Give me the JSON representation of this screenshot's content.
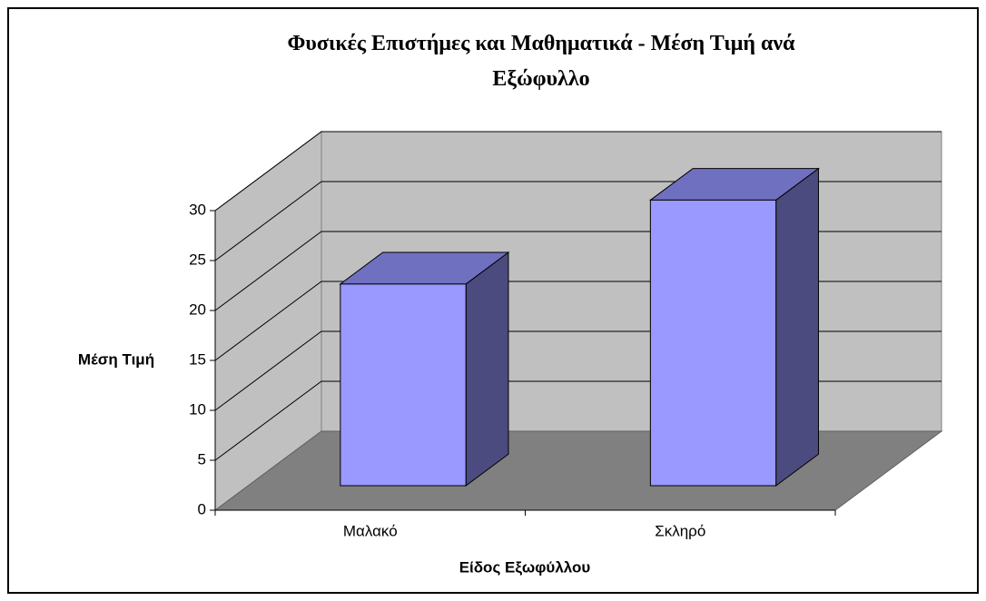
{
  "chart_data": {
    "type": "bar3d",
    "title": "Φυσικές Επιστήμες και Μαθηματικά - Μέση Τιμή ανά Εξώφυλλο",
    "xlabel": "Είδος Εξωφύλλου",
    "ylabel": "Μέση Τιμή",
    "categories": [
      "Μαλακό",
      "Σκληρό"
    ],
    "values": [
      20.2,
      28.6
    ],
    "color": "#9999ff",
    "ylim": [
      0,
      30
    ],
    "yticks": [
      0,
      5,
      10,
      15,
      20,
      25,
      30
    ],
    "grid": true
  }
}
